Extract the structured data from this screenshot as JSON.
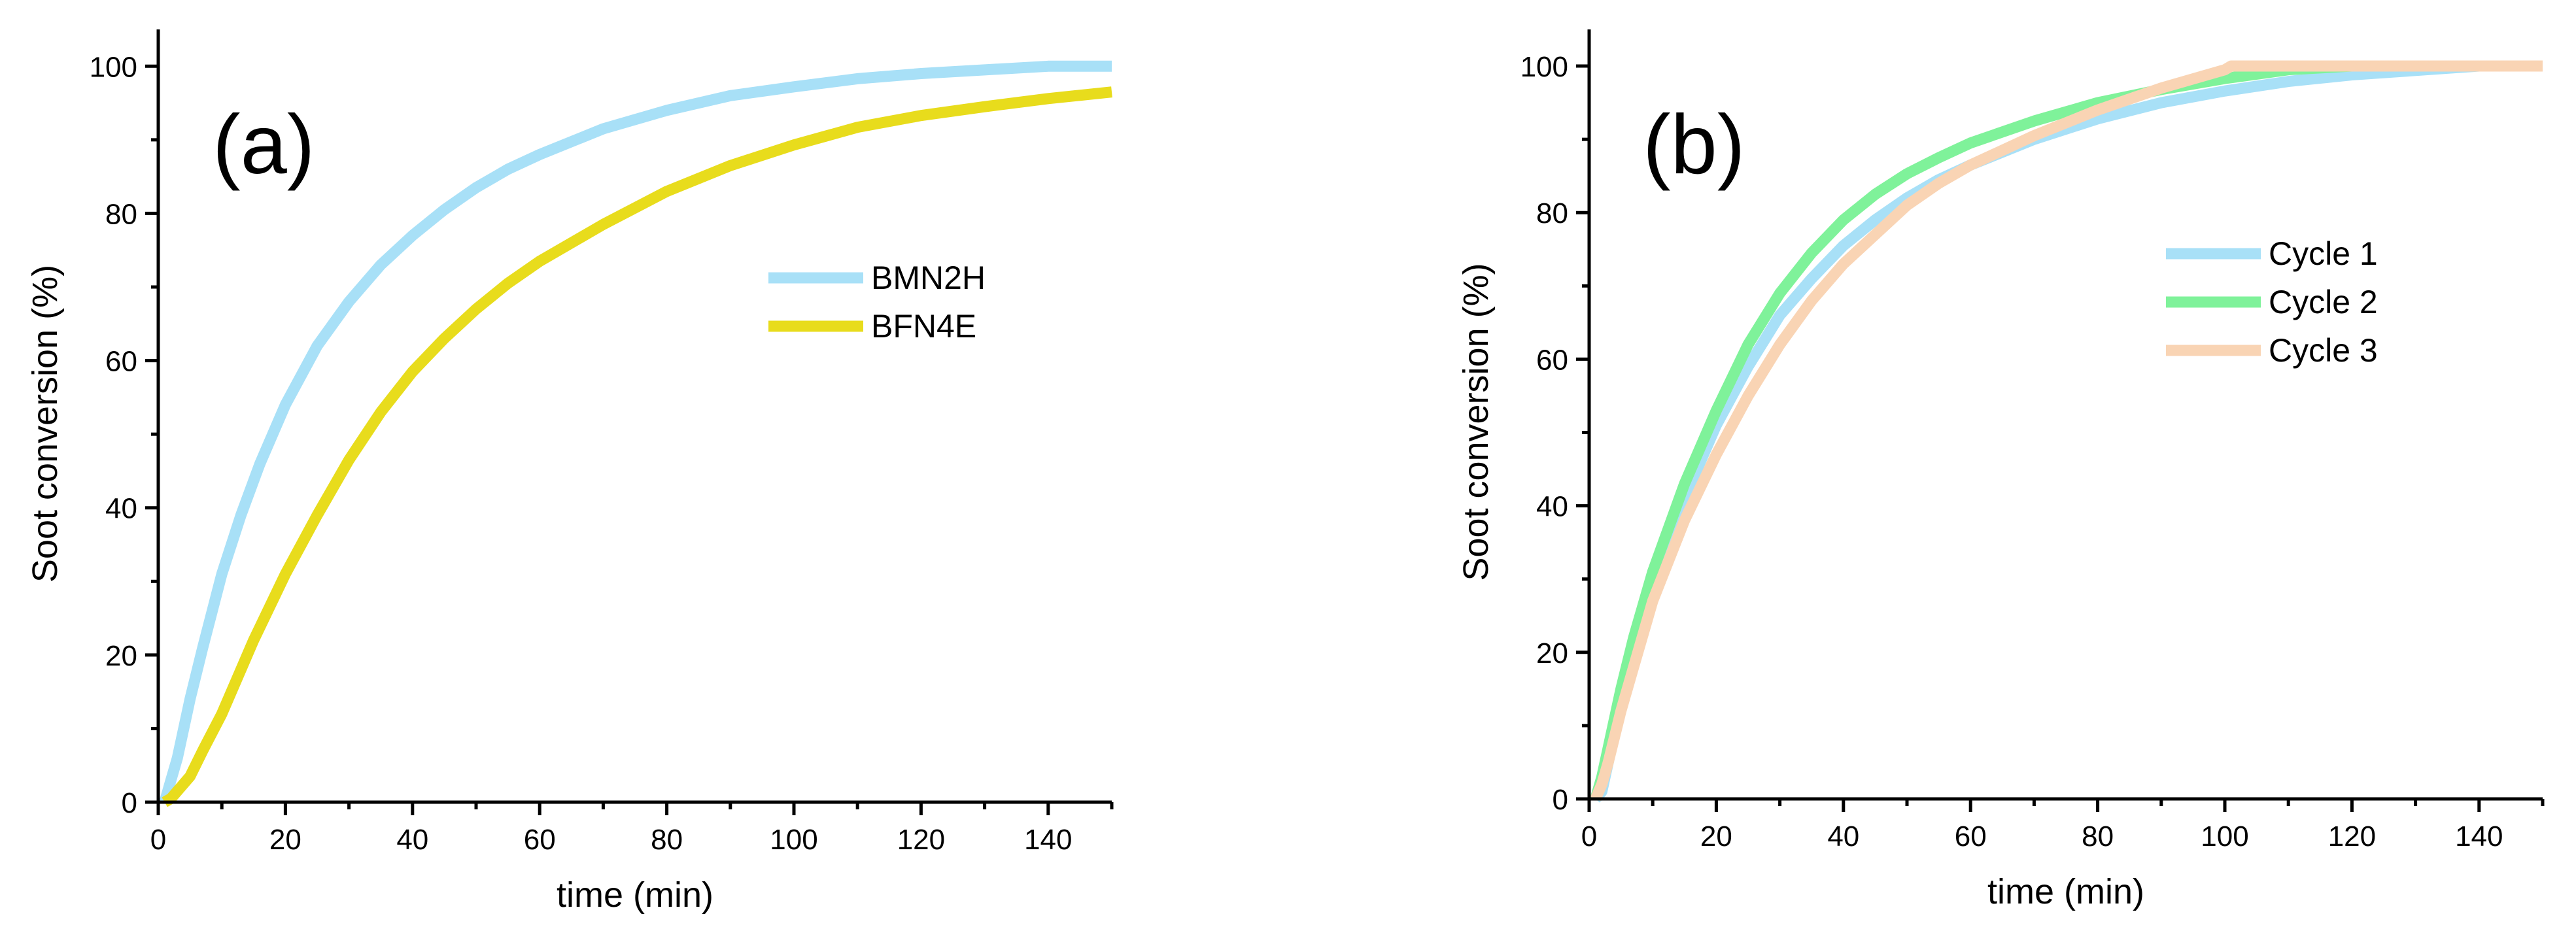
{
  "chart_data": [
    {
      "type": "line",
      "panel_label": "(a)",
      "xlabel": "time (min)",
      "ylabel": "Soot conversion (%)",
      "xlim": [
        0,
        150
      ],
      "ylim": [
        0,
        105
      ],
      "xticks": [
        0,
        20,
        40,
        60,
        80,
        100,
        120,
        140
      ],
      "yticks": [
        0,
        20,
        40,
        60,
        80,
        100
      ],
      "legend_position": "upper-right",
      "series": [
        {
          "name": "BMN2H",
          "color": "#a8e0f7",
          "x": [
            1,
            2,
            3,
            5,
            7,
            10,
            13,
            16,
            20,
            25,
            30,
            35,
            40,
            45,
            50,
            55,
            60,
            70,
            80,
            90,
            100,
            110,
            120,
            130,
            140,
            150
          ],
          "y": [
            0,
            3,
            6,
            14,
            21,
            31,
            39,
            46,
            54,
            62,
            68,
            73,
            77,
            80.5,
            83.5,
            86,
            88,
            91.5,
            94,
            96,
            97.2,
            98.3,
            99,
            99.5,
            100,
            100
          ]
        },
        {
          "name": "BFN4E",
          "color": "#e8dc1c",
          "x": [
            1,
            2,
            3,
            5,
            7,
            10,
            15,
            20,
            25,
            30,
            35,
            40,
            45,
            50,
            55,
            60,
            70,
            80,
            90,
            100,
            110,
            120,
            130,
            140,
            150
          ],
          "y": [
            0,
            0.5,
            1.5,
            3.5,
            7,
            12,
            22,
            31,
            39,
            46.5,
            53,
            58.5,
            63,
            67,
            70.5,
            73.5,
            78.5,
            83,
            86.5,
            89.3,
            91.7,
            93.3,
            94.5,
            95.6,
            96.5
          ]
        }
      ]
    },
    {
      "type": "line",
      "panel_label": "(b)",
      "xlabel": "time (min)",
      "ylabel": "Soot conversion (%)",
      "xlim": [
        0,
        150
      ],
      "ylim": [
        0,
        105
      ],
      "xticks": [
        0,
        20,
        40,
        60,
        80,
        100,
        120,
        140
      ],
      "yticks": [
        0,
        20,
        40,
        60,
        80,
        100
      ],
      "legend_position": "upper-right",
      "series": [
        {
          "name": "Cycle 1",
          "color": "#a8e0f7",
          "x": [
            1,
            2,
            3,
            5,
            7,
            10,
            15,
            20,
            25,
            30,
            35,
            40,
            45,
            50,
            55,
            60,
            70,
            80,
            90,
            100,
            110,
            120,
            130,
            140,
            150
          ],
          "y": [
            0,
            1,
            5,
            13,
            20,
            29,
            41,
            51,
            59,
            66,
            71,
            75.5,
            79,
            82,
            84.5,
            86.5,
            90,
            92.8,
            95,
            96.6,
            97.9,
            98.8,
            99.4,
            100,
            100
          ]
        },
        {
          "name": "Cycle 2",
          "color": "#7ff29a",
          "x": [
            1,
            2,
            3,
            5,
            7,
            10,
            15,
            20,
            25,
            30,
            35,
            40,
            45,
            50,
            55,
            60,
            70,
            80,
            90,
            100,
            110,
            120,
            130,
            140,
            150
          ],
          "y": [
            0,
            3,
            7,
            15,
            22,
            31,
            43,
            53,
            62,
            69,
            74.5,
            79,
            82.5,
            85.3,
            87.5,
            89.5,
            92.5,
            95,
            96.8,
            98.3,
            99.5,
            100,
            100,
            100,
            100
          ]
        },
        {
          "name": "Cycle 3",
          "color": "#f9d4b4",
          "x": [
            1,
            2,
            3,
            5,
            7,
            10,
            15,
            20,
            25,
            30,
            35,
            40,
            45,
            50,
            55,
            60,
            70,
            80,
            90,
            100,
            101,
            110,
            120,
            130,
            140,
            150
          ],
          "y": [
            0,
            2,
            5,
            12,
            18,
            27,
            38,
            47,
            55,
            62,
            68,
            73,
            77,
            81,
            84,
            86.5,
            90.5,
            94,
            97,
            99.5,
            100,
            100,
            100,
            100,
            100,
            100
          ]
        }
      ]
    }
  ]
}
